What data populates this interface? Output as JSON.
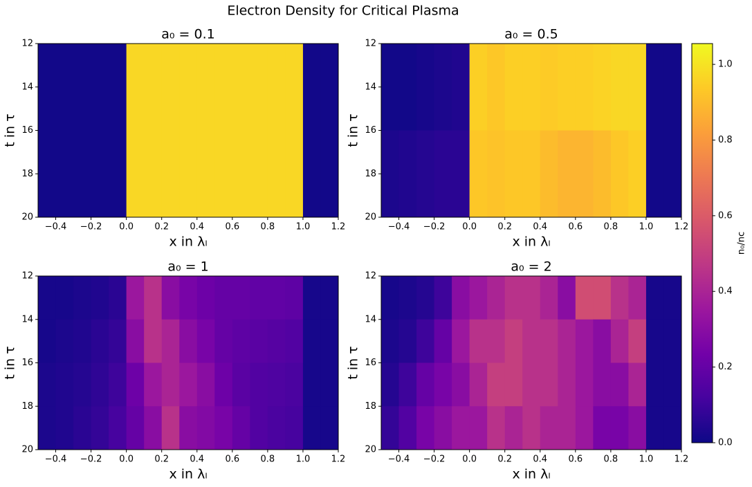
{
  "title": "Electron Density for Critical Plasma",
  "colormap": [
    "#0d0887",
    "#46039f",
    "#7201a8",
    "#9c179e",
    "#bd3786",
    "#d8576b",
    "#ed7953",
    "#fb9f3a",
    "#fdca26",
    "#f0f921"
  ],
  "colorbar": {
    "label": "n₀/nc",
    "ylim": [
      0,
      1.055
    ],
    "yticks": [
      {
        "value": 0,
        "label": "0.0"
      },
      0.2,
      0.4,
      0.6,
      0.8,
      {
        "value": 1,
        "label": "1.0"
      }
    ]
  },
  "chart_data": [
    {
      "type": "heatmap",
      "title": "a₀ = 0.1",
      "xlabel": "x in λₗ",
      "ylabel": "t in τ",
      "xlim": [
        -0.5,
        1.2
      ],
      "ylim": [
        20,
        12
      ],
      "xticks": [
        {
          "value": -0.4,
          "label": "−0.4"
        },
        {
          "value": -0.2,
          "label": "−0.2"
        },
        {
          "value": 0,
          "label": "0.0"
        },
        0.2,
        0.4,
        0.6,
        0.8,
        {
          "value": 1,
          "label": "1.0"
        },
        1.2
      ],
      "yticks": [
        12,
        14,
        16,
        18,
        20
      ],
      "xbins": [
        -0.5,
        -0.4,
        -0.3,
        -0.2,
        -0.1,
        0,
        0.1,
        0.2,
        0.3,
        0.4,
        0.5,
        0.6,
        0.7,
        0.8,
        0.9,
        1,
        1.1,
        1.2
      ],
      "ybins": [
        12,
        20
      ],
      "values": [
        [
          0.01,
          0.01,
          0.01,
          0.01,
          0.01,
          0.97,
          0.97,
          0.97,
          0.97,
          0.97,
          0.97,
          0.97,
          0.97,
          0.97,
          0.97,
          0.01,
          0.01
        ]
      ]
    },
    {
      "type": "heatmap",
      "title": "a₀ = 0.5",
      "xlabel": "x in λₗ",
      "ylabel": "t in τ",
      "xlim": [
        -0.5,
        1.2
      ],
      "ylim": [
        20,
        12
      ],
      "xticks": [
        {
          "value": -0.4,
          "label": "−0.4"
        },
        {
          "value": -0.2,
          "label": "−0.2"
        },
        {
          "value": 0,
          "label": "0.0"
        },
        0.2,
        0.4,
        0.6,
        0.8,
        {
          "value": 1,
          "label": "1.0"
        },
        1.2
      ],
      "yticks": [
        12,
        14,
        16,
        18,
        20
      ],
      "xbins": [
        -0.5,
        -0.4,
        -0.3,
        -0.2,
        -0.1,
        0,
        0.1,
        0.2,
        0.3,
        0.4,
        0.5,
        0.6,
        0.7,
        0.8,
        0.9,
        1,
        1.1,
        1.2
      ],
      "ybins": [
        12,
        16,
        20
      ],
      "values": [
        [
          0.01,
          0.01,
          0.02,
          0.03,
          0.04,
          0.95,
          0.93,
          0.95,
          0.95,
          0.94,
          0.95,
          0.95,
          0.96,
          0.97,
          0.97,
          0.01,
          0.01
        ],
        [
          0.03,
          0.04,
          0.05,
          0.06,
          0.06,
          0.93,
          0.92,
          0.93,
          0.93,
          0.9,
          0.88,
          0.88,
          0.9,
          0.93,
          0.95,
          0.01,
          0.01
        ]
      ]
    },
    {
      "type": "heatmap",
      "title": "a₀ = 1",
      "xlabel": "x in λₗ",
      "ylabel": "t in τ",
      "xlim": [
        -0.5,
        1.2
      ],
      "ylim": [
        20,
        12
      ],
      "xticks": [
        {
          "value": -0.4,
          "label": "−0.4"
        },
        {
          "value": -0.2,
          "label": "−0.2"
        },
        {
          "value": 0,
          "label": "0.0"
        },
        0.2,
        0.4,
        0.6,
        0.8,
        {
          "value": 1,
          "label": "1.0"
        },
        1.2
      ],
      "yticks": [
        12,
        14,
        16,
        18,
        20
      ],
      "xbins": [
        -0.5,
        -0.4,
        -0.3,
        -0.2,
        -0.1,
        0,
        0.1,
        0.2,
        0.3,
        0.4,
        0.5,
        0.6,
        0.7,
        0.8,
        0.9,
        1,
        1.1,
        1.2
      ],
      "ybins": [
        12,
        14,
        16,
        18,
        20
      ],
      "values": [
        [
          0.02,
          0.02,
          0.03,
          0.04,
          0.06,
          0.35,
          0.45,
          0.3,
          0.25,
          0.22,
          0.2,
          0.2,
          0.19,
          0.19,
          0.18,
          0.02,
          0.02
        ],
        [
          0.02,
          0.03,
          0.04,
          0.06,
          0.08,
          0.3,
          0.45,
          0.4,
          0.3,
          0.25,
          0.2,
          0.18,
          0.17,
          0.16,
          0.15,
          0.02,
          0.02
        ],
        [
          0.03,
          0.04,
          0.05,
          0.07,
          0.1,
          0.22,
          0.35,
          0.4,
          0.35,
          0.3,
          0.22,
          0.17,
          0.15,
          0.14,
          0.13,
          0.02,
          0.02
        ],
        [
          0.03,
          0.04,
          0.06,
          0.08,
          0.12,
          0.2,
          0.3,
          0.45,
          0.3,
          0.28,
          0.25,
          0.2,
          0.15,
          0.13,
          0.12,
          0.02,
          0.02
        ]
      ]
    },
    {
      "type": "heatmap",
      "title": "a₀ = 2",
      "xlabel": "x in λₗ",
      "ylabel": "t in τ",
      "xlim": [
        -0.5,
        1.2
      ],
      "ylim": [
        20,
        12
      ],
      "xticks": [
        {
          "value": -0.4,
          "label": "−0.4"
        },
        {
          "value": -0.2,
          "label": "−0.2"
        },
        {
          "value": 0,
          "label": "0.0"
        },
        0.2,
        0.4,
        0.6,
        0.8,
        {
          "value": 1,
          "label": "1.0"
        },
        1.2
      ],
      "yticks": [
        12,
        14,
        16,
        18,
        20
      ],
      "xbins": [
        -0.5,
        -0.4,
        -0.3,
        -0.2,
        -0.1,
        0,
        0.1,
        0.2,
        0.3,
        0.4,
        0.5,
        0.6,
        0.7,
        0.8,
        0.9,
        1,
        1.1,
        1.2
      ],
      "ybins": [
        12,
        14,
        16,
        18,
        20
      ],
      "values": [
        [
          0.02,
          0.03,
          0.05,
          0.1,
          0.3,
          0.35,
          0.4,
          0.45,
          0.45,
          0.4,
          0.3,
          0.55,
          0.55,
          0.45,
          0.4,
          0.02,
          0.02
        ],
        [
          0.03,
          0.05,
          0.1,
          0.2,
          0.35,
          0.45,
          0.45,
          0.5,
          0.45,
          0.45,
          0.4,
          0.35,
          0.3,
          0.4,
          0.5,
          0.02,
          0.02
        ],
        [
          0.05,
          0.1,
          0.2,
          0.25,
          0.3,
          0.4,
          0.5,
          0.5,
          0.45,
          0.45,
          0.4,
          0.35,
          0.3,
          0.3,
          0.4,
          0.02,
          0.02
        ],
        [
          0.08,
          0.15,
          0.25,
          0.3,
          0.35,
          0.35,
          0.45,
          0.4,
          0.45,
          0.4,
          0.4,
          0.35,
          0.25,
          0.25,
          0.3,
          0.02,
          0.02
        ]
      ]
    }
  ]
}
